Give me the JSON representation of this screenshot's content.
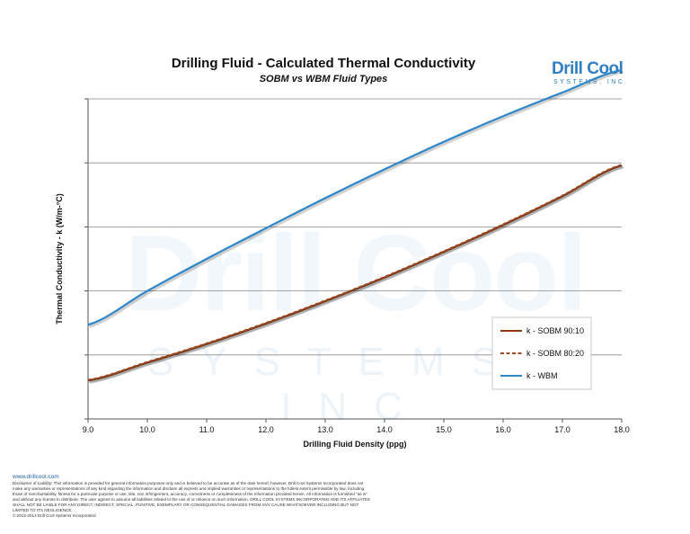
{
  "chart_data": {
    "type": "line",
    "title": "Drilling Fluid - Calculated Thermal Conductivity",
    "subtitle": "SOBM vs WBM Fluid Types",
    "xlabel": "Drilling Fluid Density (ppg)",
    "ylabel": "Thermal Conductivity - k (W/m-°C)",
    "xlim": [
      9.0,
      18.0
    ],
    "ylim": [
      0,
      5
    ],
    "x_ticks": [
      "9.0",
      "10.0",
      "11.0",
      "12.0",
      "13.0",
      "14.0",
      "15.0",
      "16.0",
      "17.0",
      "18.0"
    ],
    "y_ticks_labeled": false,
    "grid": "horizontal",
    "legend_position": "bottom-right",
    "x": [
      9,
      10,
      11,
      12,
      13,
      14,
      15,
      16,
      17,
      18
    ],
    "series": [
      {
        "name": "k - SOBM 90:10",
        "color": "#8b3a0f",
        "dash": "solid",
        "values": [
          0.6,
          0.88,
          1.17,
          1.49,
          1.84,
          2.21,
          2.61,
          3.03,
          3.48,
          3.96
        ]
      },
      {
        "name": "k - SOBM 80:20",
        "color": "#9a4a25",
        "dash": "dashed",
        "values": [
          0.61,
          0.89,
          1.18,
          1.5,
          1.85,
          2.22,
          2.62,
          3.04,
          3.49,
          3.97
        ]
      },
      {
        "name": "k - WBM",
        "color": "#2f86c8",
        "dash": "solid",
        "values": [
          1.47,
          2.0,
          2.5,
          2.98,
          3.45,
          3.9,
          4.33,
          4.73,
          5.1,
          5.45
        ]
      }
    ]
  },
  "logo": {
    "main": "Drill Cool",
    "sub": "SYSTEMS, INC"
  },
  "watermark": {
    "main": "Drill Cool",
    "sub": "SYSTEMS, INC"
  },
  "footer": {
    "url": "www.drillcool.com",
    "disclaimer": "Disclaimer of Liability: This information is provided for general information purposes only and is believed to be accurate as of the date hereof; however, Drill Cool Systems Incorporated does not make any warranties or representations of any kind regarding the information and disclaim all express and implied warranties or representations to the fullest extent permissible by law, including those of merchantability, fitness for a particular purpose or use, title, non infringement, accuracy, correctness or completeness of the information provided herein. All information is furnished \"as is\" and without any license to distribute. The user agrees to assume all liabilities related to the use of or reliance on such information. DRILL COOL SYSTEMS INCORPORATED AND ITS AFFILIATES SHALL NOT BE LIABLE FOR ANY DIRECT, INDIRECT, SPECIAL, PUNITIVE, EXEMPLARY OR CONSEQUENTIAL DAMAGES FROM ANY CAUSE WHATSOEVER INCLUDING BUT NOT LIMITED TO ITS NEGLIGENCE.",
    "copyright": "© 2012-2014 Drill Cool Systems Incorporated"
  }
}
